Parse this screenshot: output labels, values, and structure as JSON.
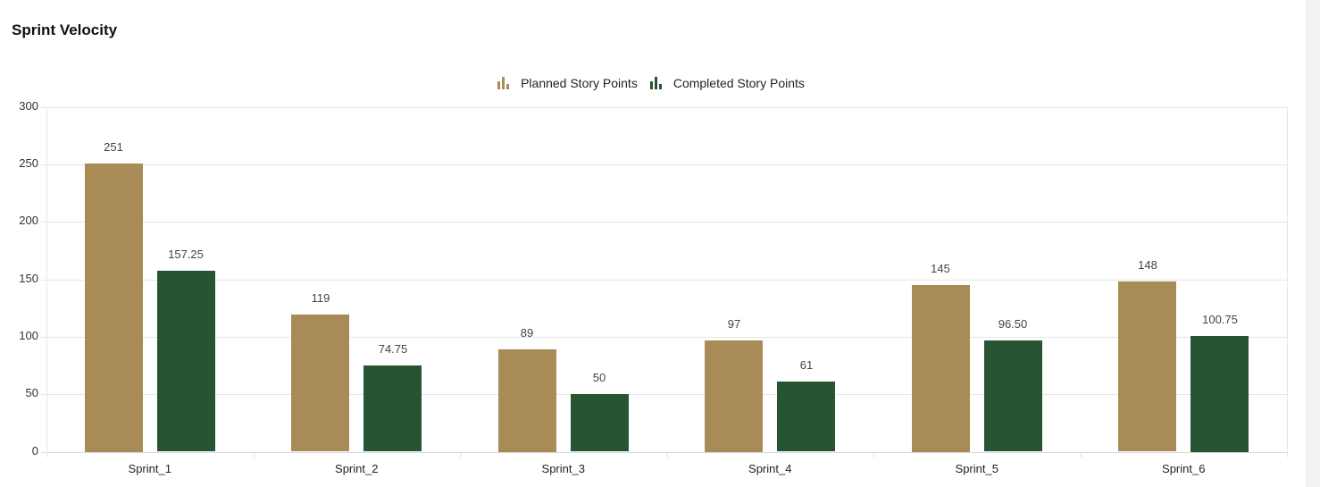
{
  "title": "Sprint Velocity",
  "legend": [
    {
      "label": "Planned Story Points",
      "color": "#A88B56",
      "icon": "bar-chart-icon"
    },
    {
      "label": "Completed Story Points",
      "color": "#275432",
      "icon": "bar-chart-icon"
    }
  ],
  "chart_data": {
    "type": "bar",
    "title": "Sprint Velocity",
    "xlabel": "",
    "ylabel": "",
    "categories": [
      "Sprint_1",
      "Sprint_2",
      "Sprint_3",
      "Sprint_4",
      "Sprint_5",
      "Sprint_6"
    ],
    "series": [
      {
        "name": "Planned Story Points",
        "color": "#A88B56",
        "values": [
          251,
          119,
          89,
          97,
          145,
          148
        ],
        "labels": [
          "251",
          "119",
          "89",
          "97",
          "145",
          "148"
        ]
      },
      {
        "name": "Completed Story Points",
        "color": "#275432",
        "values": [
          157.25,
          74.75,
          50,
          61,
          96.5,
          100.75
        ],
        "labels": [
          "157.25",
          "74.75",
          "50",
          "61",
          "96.50",
          "100.75"
        ]
      }
    ],
    "ylim": [
      0,
      300
    ],
    "yticks": [
      0,
      50,
      100,
      150,
      200,
      250,
      300
    ],
    "grid": true,
    "legend_position": "top",
    "data_labels": true
  }
}
